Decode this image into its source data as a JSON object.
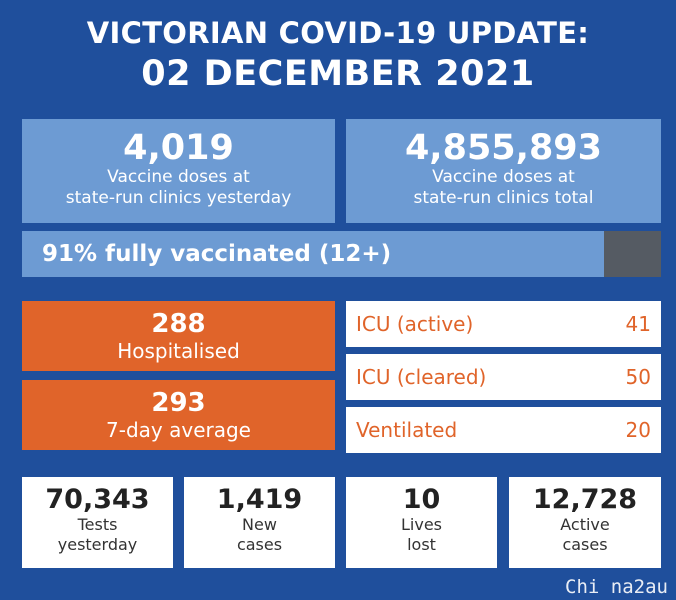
{
  "header": {
    "title": "VICTORIAN COVID-19 UPDATE:",
    "date": "02 DECEMBER 2021"
  },
  "vaccine_doses": [
    {
      "value": "4,019",
      "label_line1": "Vaccine doses at",
      "label_line2": "state-run clinics yesterday"
    },
    {
      "value": "4,855,893",
      "label_line1": "Vaccine doses at",
      "label_line2": "state-run clinics total"
    }
  ],
  "vaccination_bar": {
    "label": "91% fully vaccinated (12+)",
    "fraction": 0.91
  },
  "hospital": [
    {
      "value": "288",
      "label": "Hospitalised"
    },
    {
      "value": "293",
      "label": "7-day average"
    }
  ],
  "icu": [
    {
      "label": "ICU (active)",
      "value": "41"
    },
    {
      "label": "ICU (cleared)",
      "value": "50"
    },
    {
      "label": "Ventilated",
      "value": "20"
    }
  ],
  "stats": [
    {
      "value": "70,343",
      "line1": "Tests",
      "line2": "yesterday"
    },
    {
      "value": "1,419",
      "line1": "New",
      "line2": "cases"
    },
    {
      "value": "10",
      "line1": "Lives",
      "line2": "lost"
    },
    {
      "value": "12,728",
      "line1": "Active",
      "line2": "cases"
    }
  ],
  "watermark": "Chi na2au",
  "colors": {
    "background": "#1f4f9c",
    "light_panel": "#6d9bd3",
    "orange": "#e0642a",
    "bar_remainder": "#555b63"
  }
}
